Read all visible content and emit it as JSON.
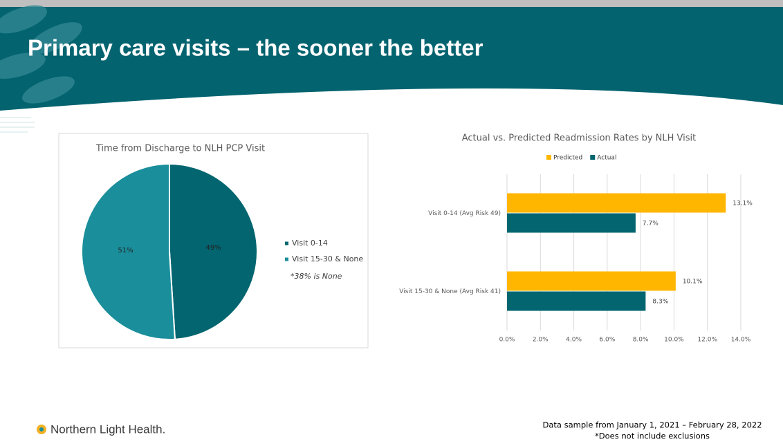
{
  "slide_title": "Primary care visits – the sooner the better",
  "chart_data": [
    {
      "type": "pie",
      "title": "Time from Discharge to NLH PCP Visit",
      "categories": [
        "Visit 0-14",
        "Visit 15-30 & None"
      ],
      "values": [
        49,
        51
      ],
      "value_labels": [
        "49%",
        "51%"
      ],
      "colors": [
        "#02656f",
        "#1a8e9b"
      ],
      "annotation": "*38% is None"
    },
    {
      "type": "hbar",
      "title": "Actual vs. Predicted Readmission Rates by NLH Visit",
      "categories": [
        "Visit 0-14 (Avg Risk 49)",
        "Visit 15-30 & None (Avg Risk 41)"
      ],
      "series": [
        {
          "name": "Predicted",
          "color": "#ffb600",
          "values": [
            13.1,
            10.1
          ],
          "value_labels": [
            "13.1%",
            "10.1%"
          ]
        },
        {
          "name": "Actual",
          "color": "#02656f",
          "values": [
            7.7,
            8.3
          ],
          "value_labels": [
            "7.7%",
            "8.3%"
          ]
        }
      ],
      "xlim": [
        0,
        14
      ],
      "xticks": [
        {
          "value": 0,
          "label": "0.0%"
        },
        {
          "value": 2,
          "label": "2.0%"
        },
        {
          "value": 4,
          "label": "4.0%"
        },
        {
          "value": 6,
          "label": "6.0%"
        },
        {
          "value": 8,
          "label": "8.0%"
        },
        {
          "value": 10,
          "label": "10.0%"
        },
        {
          "value": 12,
          "label": "12.0%"
        },
        {
          "value": 14,
          "label": "14.0%"
        }
      ],
      "grid": true,
      "legend": "top"
    }
  ],
  "footer": {
    "logo": "Northern Light Health.",
    "note_lines": [
      "Data sample from January 1, 2021 – February 28, 2022",
      "*Does not include exclusions"
    ]
  }
}
